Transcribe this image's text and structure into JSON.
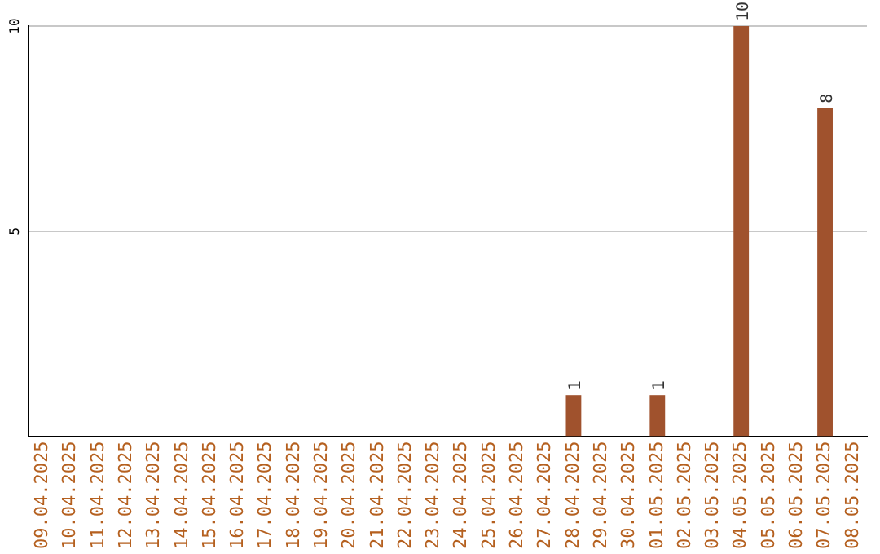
{
  "chart_data": {
    "type": "bar",
    "categories": [
      "09.04.2025",
      "10.04.2025",
      "11.04.2025",
      "12.04.2025",
      "13.04.2025",
      "14.04.2025",
      "15.04.2025",
      "16.04.2025",
      "17.04.2025",
      "18.04.2025",
      "19.04.2025",
      "20.04.2025",
      "21.04.2025",
      "22.04.2025",
      "23.04.2025",
      "24.04.2025",
      "25.04.2025",
      "26.04.2025",
      "27.04.2025",
      "28.04.2025",
      "29.04.2025",
      "30.04.2025",
      "01.05.2025",
      "02.05.2025",
      "03.05.2025",
      "04.05.2025",
      "05.05.2025",
      "06.05.2025",
      "07.05.2025",
      "08.05.2025"
    ],
    "values": [
      0,
      0,
      0,
      0,
      0,
      0,
      0,
      0,
      0,
      0,
      0,
      0,
      0,
      0,
      0,
      0,
      0,
      0,
      0,
      1,
      0,
      0,
      1,
      0,
      0,
      10,
      0,
      0,
      8,
      0
    ],
    "value_labels": [
      null,
      null,
      null,
      null,
      null,
      null,
      null,
      null,
      null,
      null,
      null,
      null,
      null,
      null,
      null,
      null,
      null,
      null,
      null,
      "1",
      null,
      null,
      "1",
      null,
      null,
      "10",
      null,
      null,
      "8",
      null
    ],
    "color": "#a0522d",
    "ylim": [
      0,
      10
    ],
    "yticks": [
      5,
      10
    ],
    "grid": "y",
    "legend": false
  }
}
